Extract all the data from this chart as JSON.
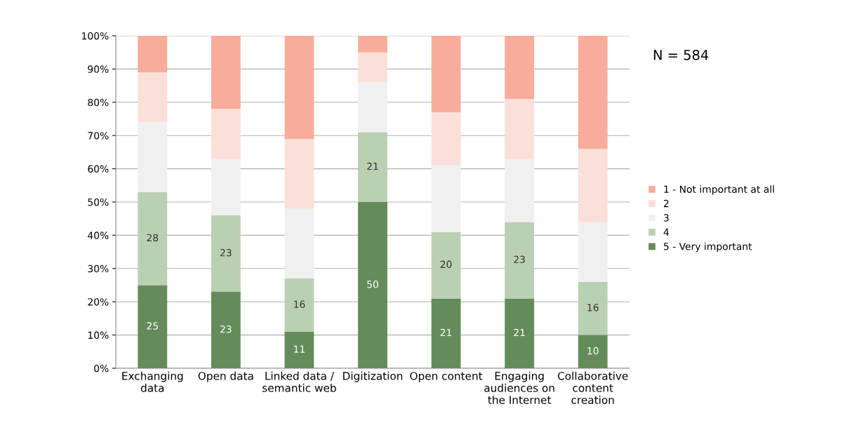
{
  "chart_data": {
    "type": "bar",
    "stacked": true,
    "categories": [
      "Exchanging\ndata",
      "Open data",
      "Linked data /\nsemantic web",
      "Digitization",
      "Open content",
      "Engaging\naudiences on\nthe Internet",
      "Collaborative\ncontent\ncreation"
    ],
    "series": [
      {
        "name": "5 - Very important",
        "color": "#648c5a",
        "values": [
          25,
          23,
          11,
          50,
          21,
          21,
          10
        ],
        "value_labels": [
          "25",
          "23",
          "11",
          "50",
          "21",
          "21",
          "10"
        ]
      },
      {
        "name": "4",
        "color": "#bad0b2",
        "values": [
          28,
          23,
          16,
          21,
          20,
          23,
          16
        ],
        "value_labels": [
          "28",
          "23",
          "16",
          "21",
          "20",
          "23",
          "16"
        ]
      },
      {
        "name": "3",
        "color": "#f0f0f0",
        "values": [
          21,
          17,
          21,
          15,
          20,
          19,
          18
        ]
      },
      {
        "name": "2",
        "color": "#fae0d8",
        "values": [
          15,
          15,
          21,
          9,
          16,
          18,
          22
        ]
      },
      {
        "name": "1 - Not important at all",
        "color": "#f8ac9c",
        "values": [
          11,
          22,
          31,
          5,
          23,
          19,
          34
        ]
      }
    ],
    "ylim": [
      0,
      100
    ],
    "yticks": [
      {
        "value": 0,
        "label": "0%"
      },
      {
        "value": 10,
        "label": "10%"
      },
      {
        "value": 20,
        "label": "20%"
      },
      {
        "value": 30,
        "label": "30%"
      },
      {
        "value": 40,
        "label": "40%"
      },
      {
        "value": 50,
        "label": "50%"
      },
      {
        "value": 60,
        "label": "60%"
      },
      {
        "value": 70,
        "label": "70%"
      },
      {
        "value": 80,
        "label": "80%"
      },
      {
        "value": 90,
        "label": "90%"
      },
      {
        "value": 100,
        "label": "100%"
      }
    ],
    "grid": "y",
    "legend": "right",
    "annotations": [
      "N = 584"
    ]
  }
}
